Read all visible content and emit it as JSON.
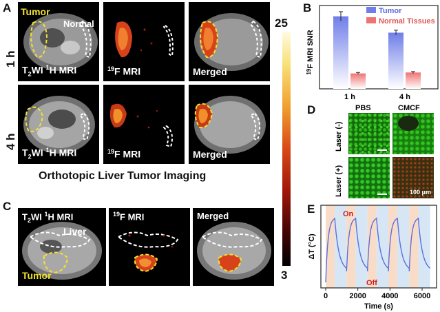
{
  "panelA": {
    "letter": "A",
    "row1_label": "1 h",
    "row2_label": "4 h",
    "overlay_tumor": "Tumor",
    "overlay_normal": "Normal",
    "captions": {
      "t2_prefix": "T",
      "t2_sub": "2",
      "t2_mid": "WI ",
      "t2_sup": "1",
      "t2_suffix": "H MRI",
      "f19_sup": "19",
      "f19_suffix": "F MRI",
      "merged": "Merged"
    }
  },
  "colorbar": {
    "max": "25",
    "min": "3"
  },
  "panelB": {
    "letter": "B",
    "legend_tumor": "Tumor",
    "legend_normal": "Normal Tissues",
    "ylabel_sup": "19",
    "ylabel_rest": "F MRI SNR",
    "categories": [
      "1 h",
      "4 h"
    ],
    "colors": {
      "tumor": "#6f7ee8",
      "normal": "#f07373"
    }
  },
  "chart_data": [
    {
      "type": "bar",
      "categories": [
        "1 h",
        "4 h"
      ],
      "series": [
        {
          "name": "Tumor",
          "values": [
            23.5,
            18.2
          ]
        },
        {
          "name": "Normal Tissues",
          "values": [
            5.0,
            5.3
          ]
        }
      ],
      "ylabel": "19F MRI SNR",
      "ylim": [
        0,
        27
      ]
    },
    {
      "type": "line",
      "xlabel": "Time (s)",
      "ylabel": "ΔT (°C)",
      "xticks": [
        0,
        2000,
        4000,
        6000
      ],
      "xlim": [
        -300,
        6900
      ],
      "annotations": [
        "On",
        "Off"
      ]
    }
  ],
  "panelC": {
    "letter": "C",
    "title": "Orthotopic Liver Tumor Imaging",
    "overlay_liver": "Liver",
    "overlay_tumor": "Tumor"
  },
  "panelD": {
    "letter": "D",
    "col1": "PBS",
    "col2": "CMCF",
    "row1": "Laser (-)",
    "row2": "Laser (+)",
    "scale": "100 μm"
  },
  "panelE": {
    "letter": "E",
    "on_label": "On",
    "off_label": "Off",
    "ylabel": "ΔT (°C)",
    "xlabel": "Time (s)",
    "xticks": [
      "0",
      "2000",
      "4000",
      "6000"
    ]
  }
}
